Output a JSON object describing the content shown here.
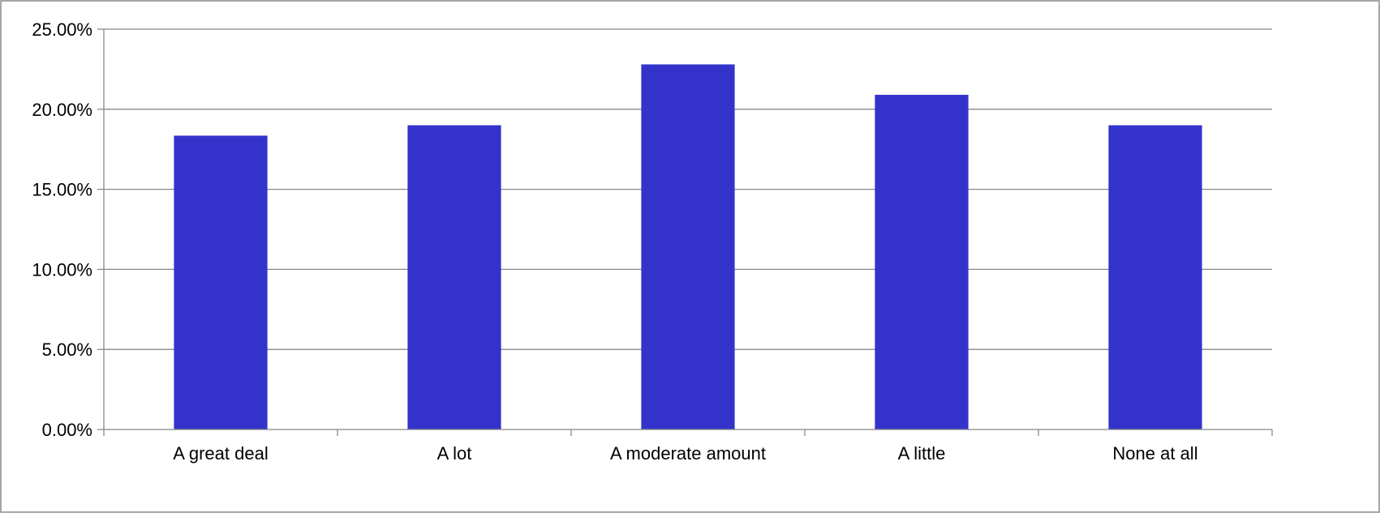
{
  "chart_data": {
    "type": "bar",
    "categories": [
      "A great deal",
      "A lot",
      "A moderate amount",
      "A little",
      "None at all"
    ],
    "values": [
      18.35,
      19.0,
      22.8,
      20.9,
      19.0
    ],
    "ylim": [
      0,
      25
    ],
    "yticks": [
      0,
      5,
      10,
      15,
      20,
      25
    ],
    "ytick_labels": [
      "0.00%",
      "5.00%",
      "10.00%",
      "15.00%",
      "20.00%",
      "25.00%"
    ],
    "grid": true,
    "legend": "none",
    "colors": {
      "bar": "#3333CC",
      "grid": "#888888",
      "axis": "#888888",
      "frame": "#888888"
    }
  }
}
